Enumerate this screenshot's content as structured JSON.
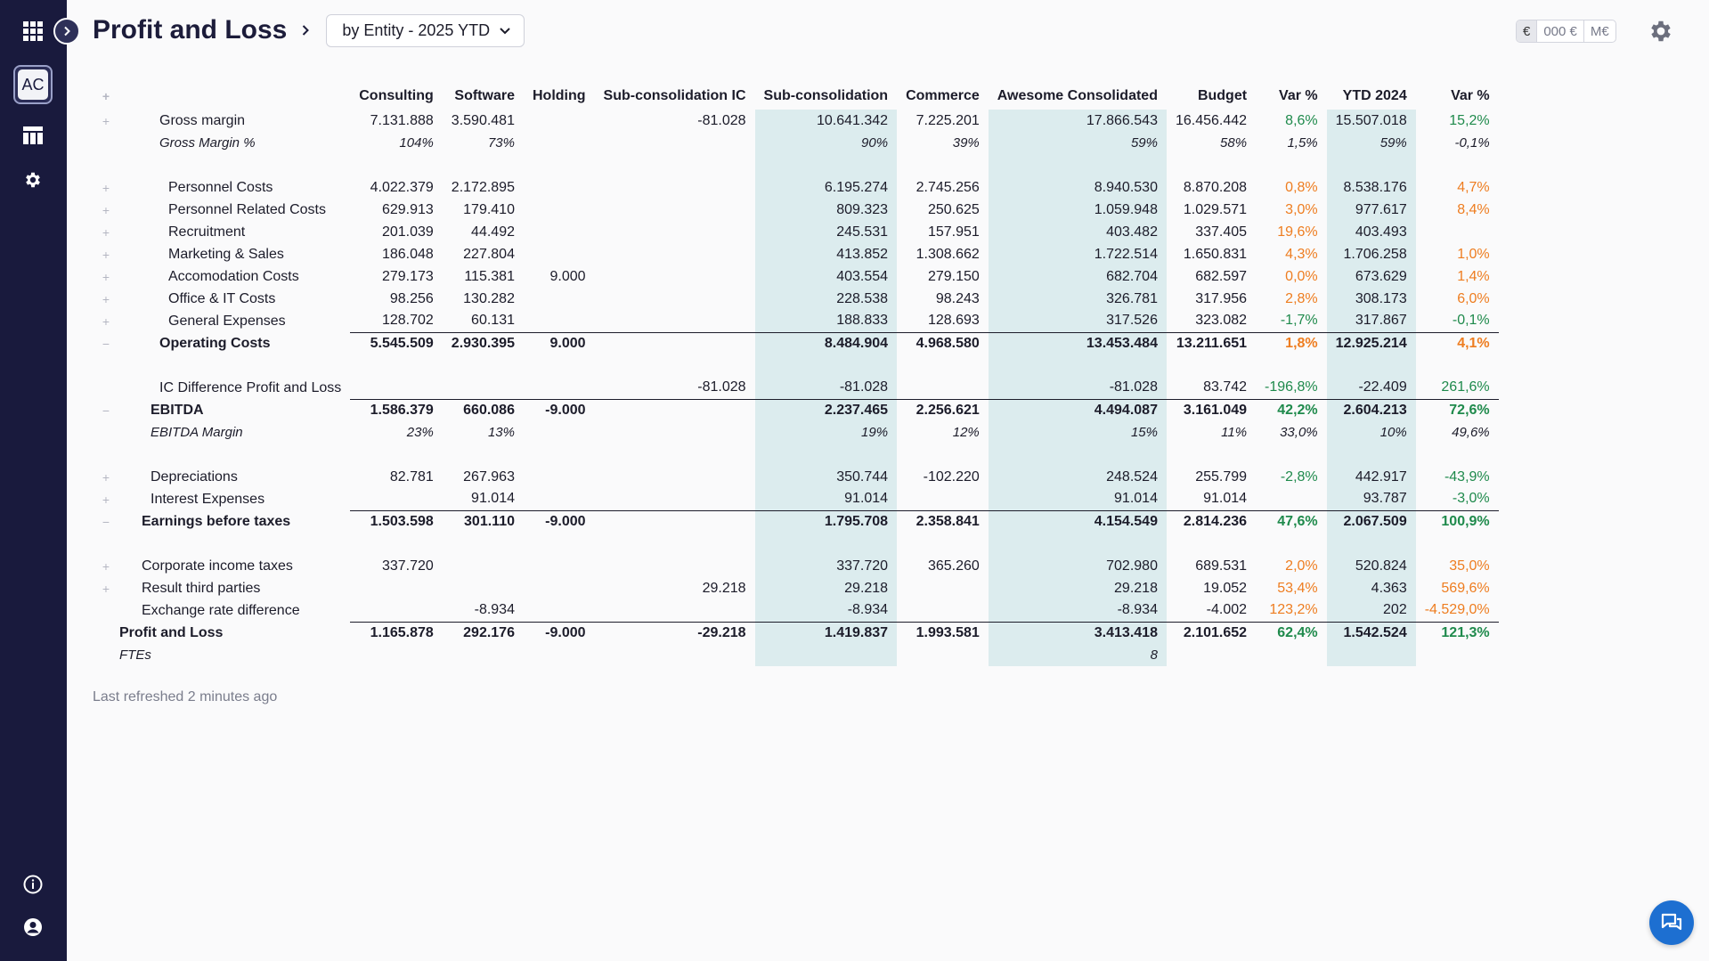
{
  "header": {
    "title": "Profit and Loss",
    "view_selector": "by Entity - 2025 YTD"
  },
  "units": [
    "€",
    "000 €",
    "M€"
  ],
  "sidebar": {
    "avatar_initials": "AC"
  },
  "table": {
    "columns": [
      "Consulting",
      "Software",
      "Holding",
      "Sub-consolidation IC",
      "Sub-consolidation",
      "Commerce",
      "Awesome Consolidated",
      "Budget",
      "Var %",
      "YTD 2024",
      "Var %"
    ],
    "rows": [
      {
        "label": "Gross margin",
        "cells": [
          "7.131.888",
          "3.590.481",
          "",
          "-81.028",
          "10.641.342",
          "7.225.201",
          "17.866.543",
          "16.456.442",
          "8,6%",
          "15.507.018",
          "15,2%"
        ]
      },
      {
        "label": "Gross Margin %",
        "cells": [
          "104%",
          "73%",
          "",
          "",
          "90%",
          "39%",
          "59%",
          "58%",
          "1,5%",
          "59%",
          "-0,1%"
        ]
      },
      {
        "label": "",
        "cells": [
          "",
          "",
          "",
          "",
          "",
          "",
          "",
          "",
          "",
          "",
          ""
        ]
      },
      {
        "label": "Personnel Costs",
        "cells": [
          "4.022.379",
          "2.172.895",
          "",
          "",
          "6.195.274",
          "2.745.256",
          "8.940.530",
          "8.870.208",
          "0,8%",
          "8.538.176",
          "4,7%"
        ]
      },
      {
        "label": "Personnel Related Costs",
        "cells": [
          "629.913",
          "179.410",
          "",
          "",
          "809.323",
          "250.625",
          "1.059.948",
          "1.029.571",
          "3,0%",
          "977.617",
          "8,4%"
        ]
      },
      {
        "label": "Recruitment",
        "cells": [
          "201.039",
          "44.492",
          "",
          "",
          "245.531",
          "157.951",
          "403.482",
          "337.405",
          "19,6%",
          "403.493",
          ""
        ]
      },
      {
        "label": "Marketing & Sales",
        "cells": [
          "186.048",
          "227.804",
          "",
          "",
          "413.852",
          "1.308.662",
          "1.722.514",
          "1.650.831",
          "4,3%",
          "1.706.258",
          "1,0%"
        ]
      },
      {
        "label": "Accomodation Costs",
        "cells": [
          "279.173",
          "115.381",
          "9.000",
          "",
          "403.554",
          "279.150",
          "682.704",
          "682.597",
          "0,0%",
          "673.629",
          "1,4%"
        ]
      },
      {
        "label": "Office & IT Costs",
        "cells": [
          "98.256",
          "130.282",
          "",
          "",
          "228.538",
          "98.243",
          "326.781",
          "317.956",
          "2,8%",
          "308.173",
          "6,0%"
        ]
      },
      {
        "label": "General Expenses",
        "cells": [
          "128.702",
          "60.131",
          "",
          "",
          "188.833",
          "128.693",
          "317.526",
          "323.082",
          "-1,7%",
          "317.867",
          "-0,1%"
        ]
      },
      {
        "label": "Operating Costs",
        "cells": [
          "5.545.509",
          "2.930.395",
          "9.000",
          "",
          "8.484.904",
          "4.968.580",
          "13.453.484",
          "13.211.651",
          "1,8%",
          "12.925.214",
          "4,1%"
        ]
      },
      {
        "label": "",
        "cells": [
          "",
          "",
          "",
          "",
          "",
          "",
          "",
          "",
          "",
          "",
          ""
        ]
      },
      {
        "label": "IC Difference Profit and Loss",
        "cells": [
          "",
          "",
          "",
          "-81.028",
          "-81.028",
          "",
          "-81.028",
          "83.742",
          "-196,8%",
          "-22.409",
          "261,6%"
        ]
      },
      {
        "label": "EBITDA",
        "cells": [
          "1.586.379",
          "660.086",
          "-9.000",
          "",
          "2.237.465",
          "2.256.621",
          "4.494.087",
          "3.161.049",
          "42,2%",
          "2.604.213",
          "72,6%"
        ]
      },
      {
        "label": "EBITDA Margin",
        "cells": [
          "23%",
          "13%",
          "",
          "",
          "19%",
          "12%",
          "15%",
          "11%",
          "33,0%",
          "10%",
          "49,6%"
        ]
      },
      {
        "label": "",
        "cells": [
          "",
          "",
          "",
          "",
          "",
          "",
          "",
          "",
          "",
          "",
          ""
        ]
      },
      {
        "label": "Depreciations",
        "cells": [
          "82.781",
          "267.963",
          "",
          "",
          "350.744",
          "-102.220",
          "248.524",
          "255.799",
          "-2,8%",
          "442.917",
          "-43,9%"
        ]
      },
      {
        "label": "Interest Expenses",
        "cells": [
          "",
          "91.014",
          "",
          "",
          "91.014",
          "",
          "91.014",
          "91.014",
          "",
          "93.787",
          "-3,0%"
        ]
      },
      {
        "label": "Earnings before taxes",
        "cells": [
          "1.503.598",
          "301.110",
          "-9.000",
          "",
          "1.795.708",
          "2.358.841",
          "4.154.549",
          "2.814.236",
          "47,6%",
          "2.067.509",
          "100,9%"
        ]
      },
      {
        "label": "",
        "cells": [
          "",
          "",
          "",
          "",
          "",
          "",
          "",
          "",
          "",
          "",
          ""
        ]
      },
      {
        "label": "Corporate income taxes",
        "cells": [
          "337.720",
          "",
          "",
          "",
          "337.720",
          "365.260",
          "702.980",
          "689.531",
          "2,0%",
          "520.824",
          "35,0%"
        ]
      },
      {
        "label": "Result third parties",
        "cells": [
          "",
          "",
          "",
          "29.218",
          "29.218",
          "",
          "29.218",
          "19.052",
          "53,4%",
          "4.363",
          "569,6%"
        ]
      },
      {
        "label": "Exchange rate difference",
        "cells": [
          "",
          "-8.934",
          "",
          "",
          "-8.934",
          "",
          "-8.934",
          "-4.002",
          "123,2%",
          "202",
          "-4.529,0%"
        ]
      },
      {
        "label": "Profit and Loss",
        "cells": [
          "1.165.878",
          "292.176",
          "-9.000",
          "-29.218",
          "1.419.837",
          "1.993.581",
          "3.413.418",
          "2.101.652",
          "62,4%",
          "1.542.524",
          "121,3%"
        ]
      },
      {
        "label": "FTEs",
        "cells": [
          "",
          "",
          "",
          "",
          "",
          "",
          "8",
          "",
          "",
          "",
          ""
        ]
      }
    ]
  },
  "footer": {
    "refreshed": "Last refreshed 2 minutes ago"
  },
  "colors": {
    "sidebar": "#191a3d",
    "highlight_column": "#dcecee",
    "positive": "#1f8a4c",
    "negative": "#ee7d20",
    "chat": "#1d6fd1"
  }
}
